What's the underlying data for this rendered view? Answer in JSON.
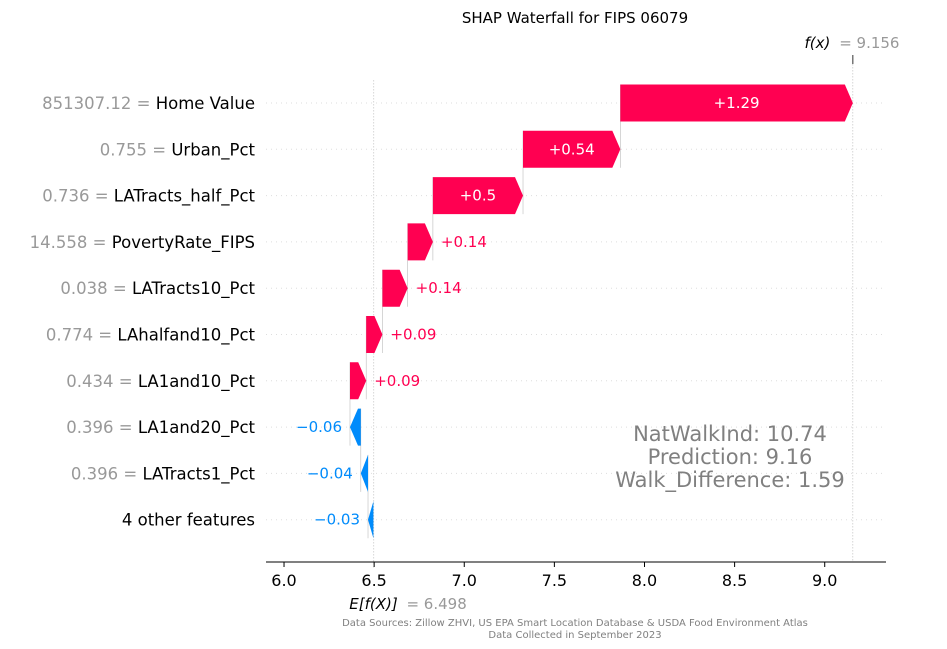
{
  "chart_data": {
    "type": "waterfall",
    "title": "SHAP Waterfall for FIPS 06079",
    "fx_label_fn": "f(x)",
    "fx_value": "= 9.156",
    "fx": 9.156,
    "base_label_fn": "E[f(X)]",
    "base_value": "= 6.498",
    "base": 6.498,
    "x_ticks": [
      "6.0",
      "6.5",
      "7.0",
      "7.5",
      "8.0",
      "8.5",
      "9.0"
    ],
    "xlim": [
      5.9,
      9.34
    ],
    "features": [
      {
        "value": "851307.12",
        "name": "Home Value",
        "shap": 1.29,
        "text": "+1.29"
      },
      {
        "value": "0.755",
        "name": "Urban_Pct",
        "shap": 0.54,
        "text": "+0.54"
      },
      {
        "value": "0.736",
        "name": "LATracts_half_Pct",
        "shap": 0.5,
        "text": "+0.5"
      },
      {
        "value": "14.558",
        "name": "PovertyRate_FIPS",
        "shap": 0.14,
        "text": "+0.14"
      },
      {
        "value": "0.038",
        "name": "LATracts10_Pct",
        "shap": 0.14,
        "text": "+0.14"
      },
      {
        "value": "0.774",
        "name": "LAhalfand10_Pct",
        "shap": 0.09,
        "text": "+0.09"
      },
      {
        "value": "0.434",
        "name": "LA1and10_Pct",
        "shap": 0.09,
        "text": "+0.09"
      },
      {
        "value": "0.396",
        "name": "LA1and20_Pct",
        "shap": -0.06,
        "text": "−0.06"
      },
      {
        "value": "0.396",
        "name": "LATracts1_Pct",
        "shap": -0.04,
        "text": "−0.04"
      },
      {
        "value": "",
        "name": "4 other features",
        "shap": -0.03,
        "text": "−0.03"
      }
    ],
    "annotation_lines": [
      "NatWalkInd:  10.74",
      "Prediction:  9.16",
      "Walk_Difference:  1.59"
    ],
    "footer_lines": [
      "Data Sources: Zillow ZHVI, US EPA Smart Location Database & USDA Food Environment Atlas",
      "Data Collected in September 2023"
    ],
    "colors": {
      "positive": "#ff0051",
      "negative": "#008bfb",
      "feature_value": "#999999",
      "annotation": "#808080"
    }
  }
}
